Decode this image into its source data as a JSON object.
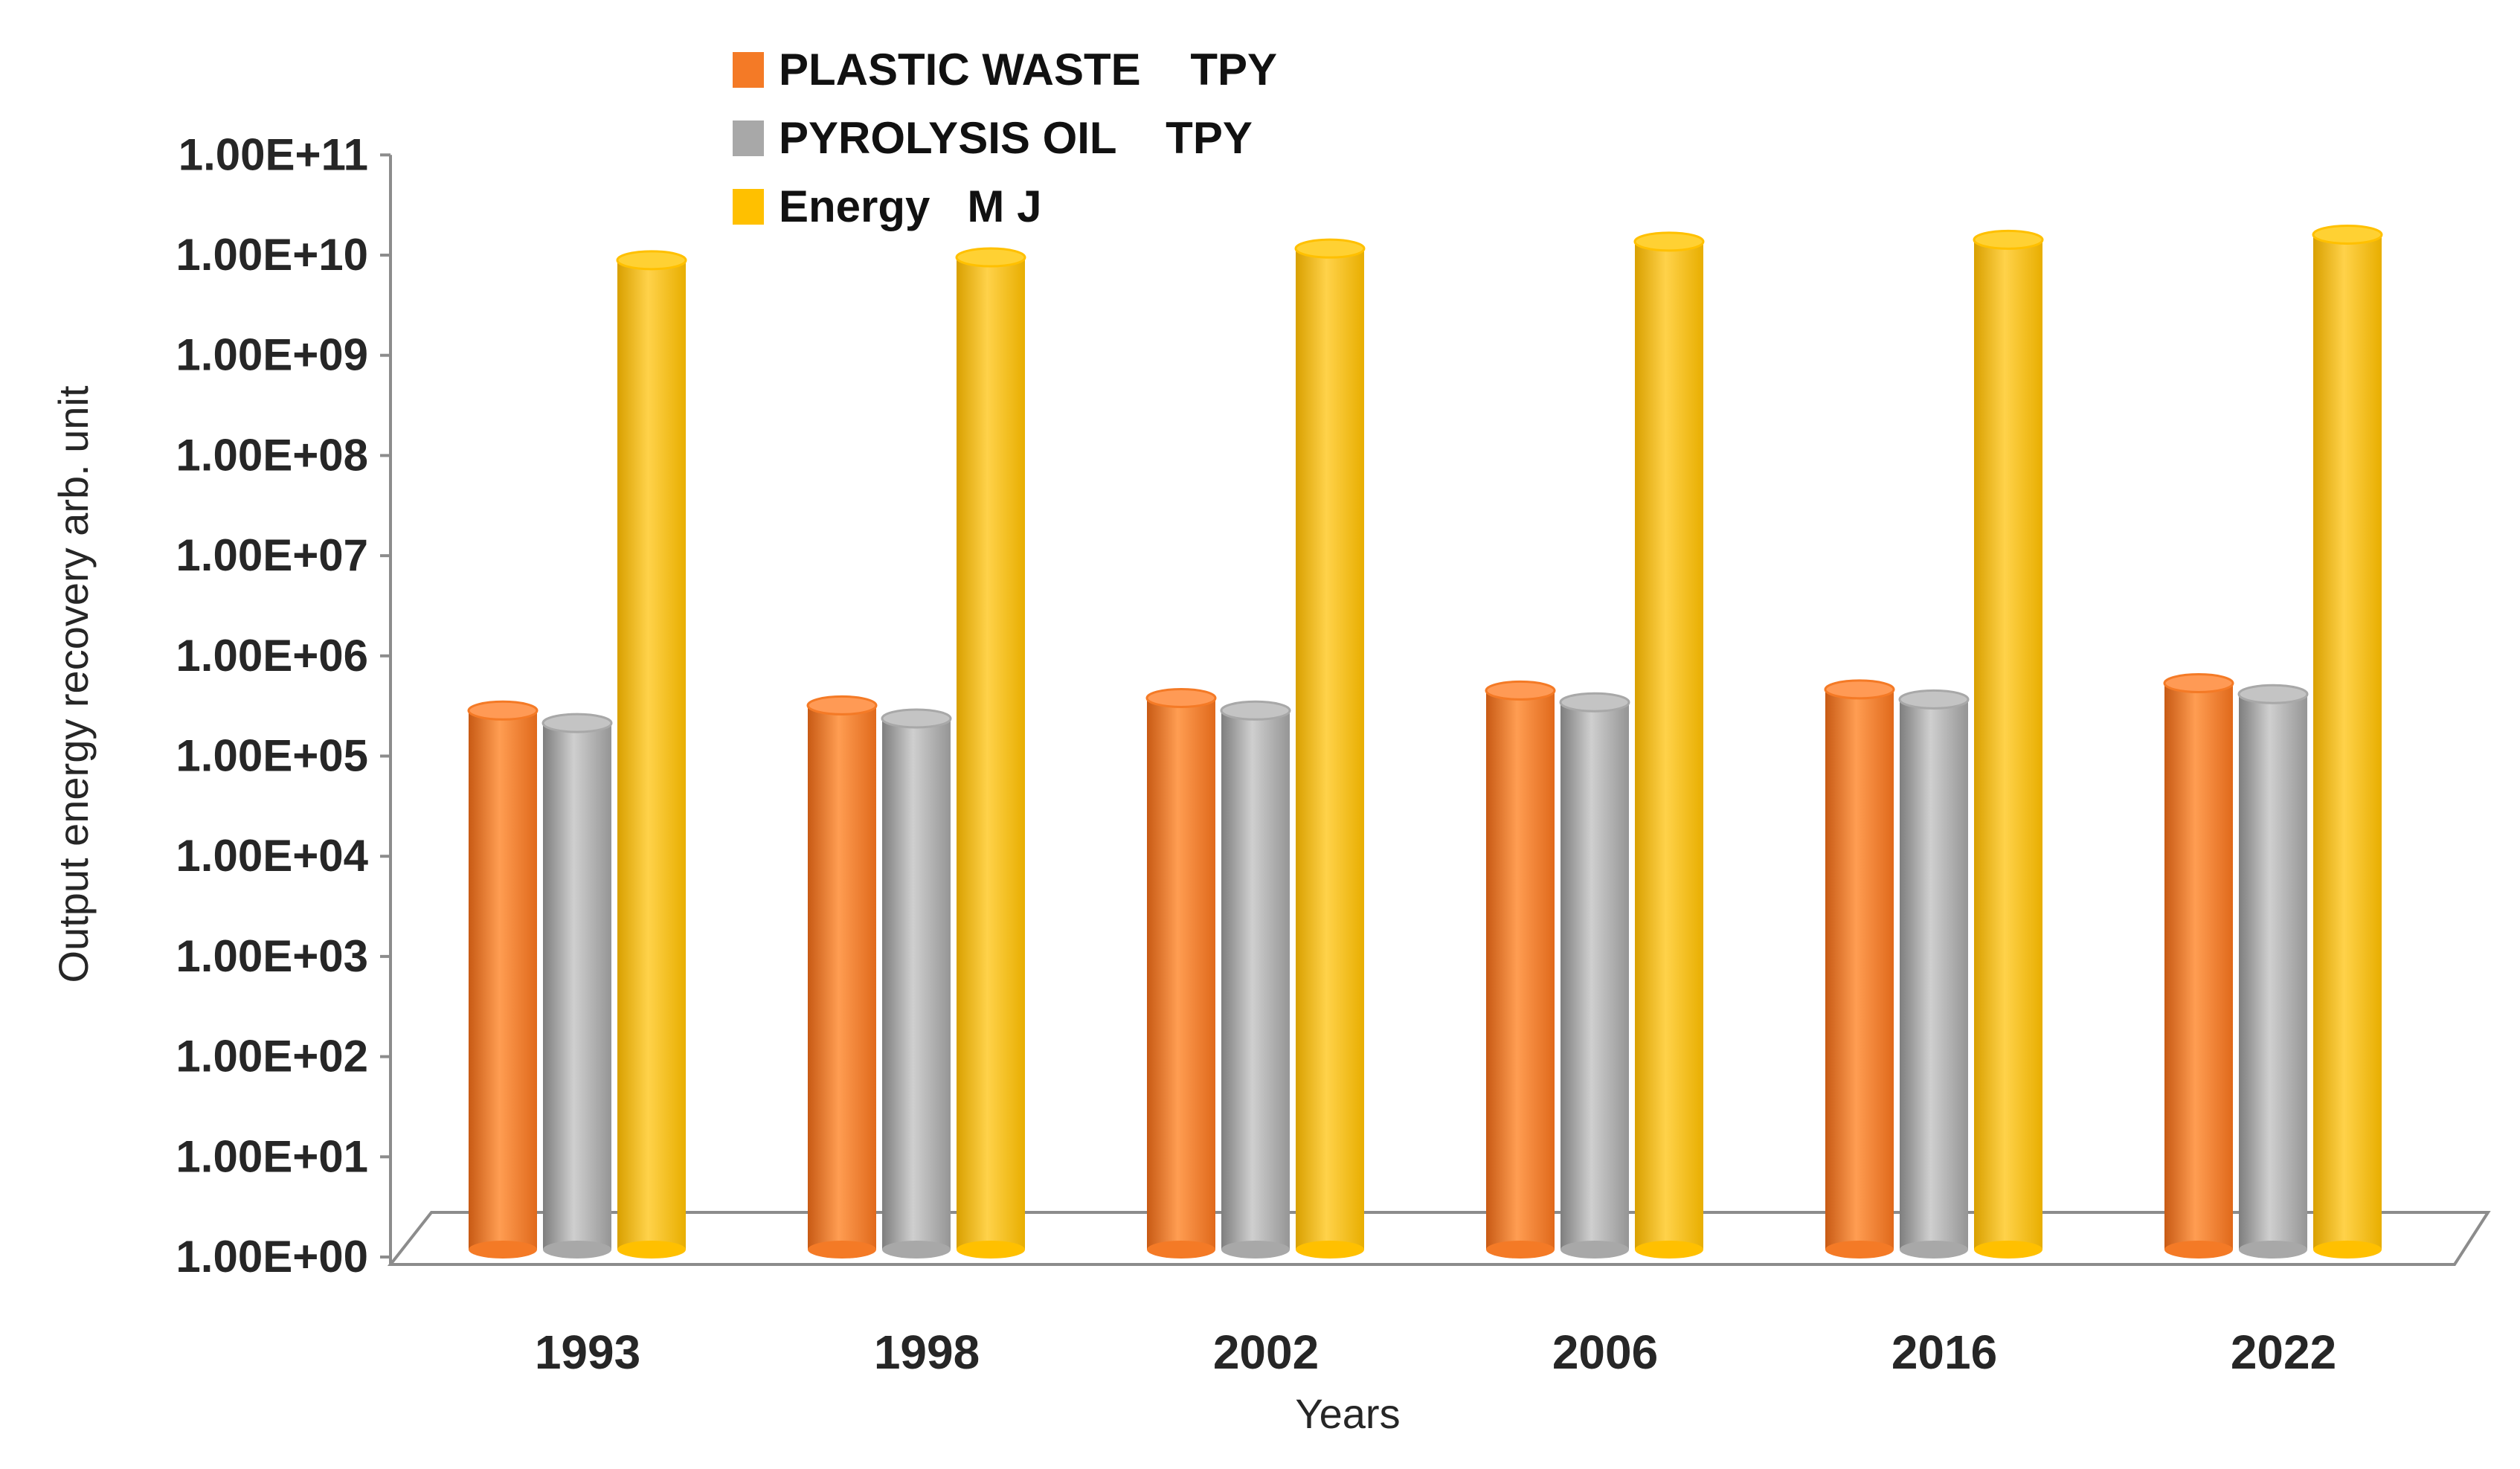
{
  "chart_data": {
    "type": "bar",
    "title": "",
    "xlabel": "Years",
    "ylabel": "Output energy recovery arb. unit",
    "yscale": "log",
    "ylim": [
      1,
      100000000000
    ],
    "yticks": [
      1,
      10,
      100,
      1000,
      10000,
      100000,
      1000000,
      10000000,
      100000000,
      1000000000,
      10000000000,
      100000000000
    ],
    "ytick_labels": [
      "1.00E+00",
      "1.00E+01",
      "1.00E+02",
      "1.00E+03",
      "1.00E+04",
      "1.00E+05",
      "1.00E+06",
      "1.00E+07",
      "1.00E+08",
      "1.00E+09",
      "1.00E+10",
      "1.00E+11"
    ],
    "categories": [
      "1993",
      "1998",
      "2002",
      "2006",
      "2016",
      "2022"
    ],
    "series": [
      {
        "name": "PLASTIC WASTE    TPY",
        "values": [
          240000,
          270000,
          320000,
          380000,
          390000,
          450000
        ]
      },
      {
        "name": "PYROLYSIS OIL    TPY",
        "values": [
          180000,
          200000,
          240000,
          290000,
          310000,
          350000
        ]
      },
      {
        "name": "Energy   M J",
        "values": [
          7500000000,
          8000000000,
          9800000000,
          11500000000,
          12000000000,
          13500000000
        ]
      }
    ],
    "legend_position": "top-left",
    "grid": false
  },
  "colors": {
    "plastic_waste": "#F47A26",
    "pyrolysis_oil": "#A8A8A8",
    "energy": "#FFC000",
    "axis": "#8c8c8c",
    "text": "#262626"
  }
}
